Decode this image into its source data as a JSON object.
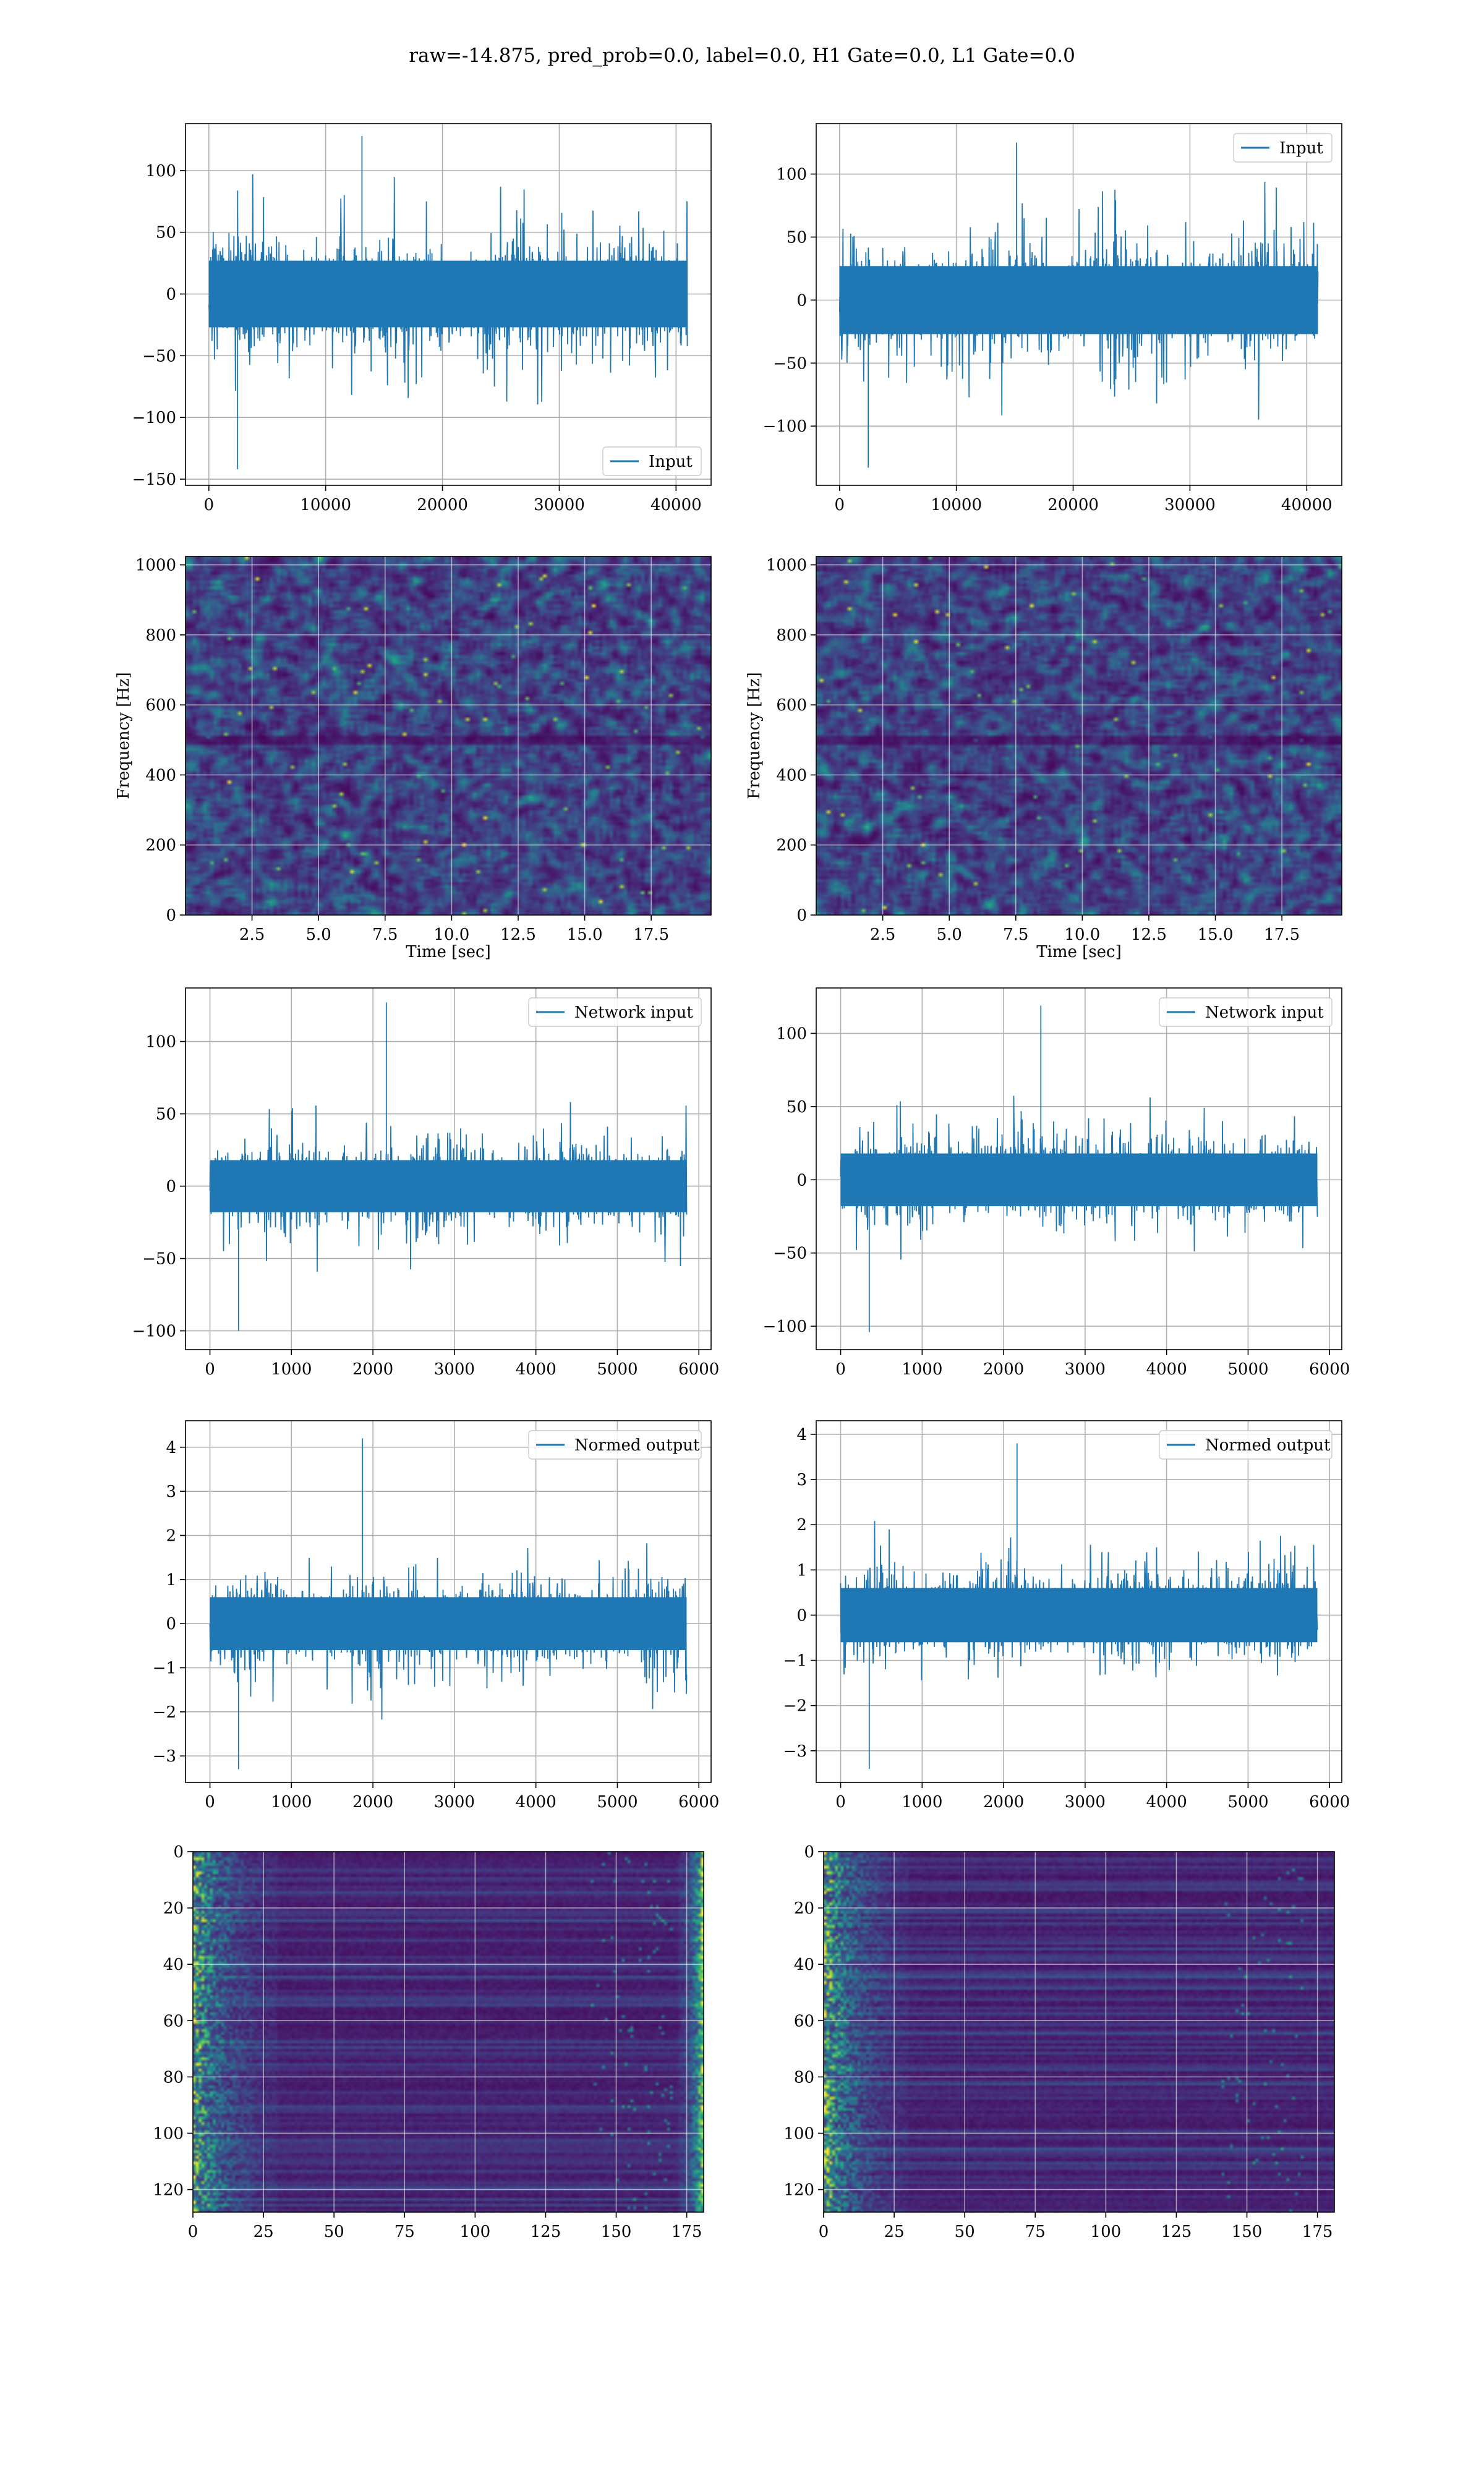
{
  "suptitle": "raw=-14.875, pred_prob=0.0, label=0.0, H1 Gate=0.0, L1 Gate=0.0",
  "colors": {
    "line": "#1f77b4",
    "grid": "#b0b0b0",
    "viridis_low": "#440154",
    "viridis_high": "#fde725"
  },
  "chart_data": [
    {
      "id": "input-h1",
      "type": "line",
      "grid": true,
      "legend": "bottom-right",
      "series": [
        {
          "name": "Input",
          "samples": 40960,
          "x_range": [
            0,
            40960
          ],
          "envelope": 45,
          "peak_max": 128,
          "peak_min": -142
        }
      ],
      "xlim": [
        -2000,
        43000
      ],
      "ylim": [
        -155,
        138
      ],
      "xticks": [
        0,
        10000,
        20000,
        30000,
        40000
      ],
      "xticklabels": [
        "0",
        "10000",
        "20000",
        "30000",
        "40000"
      ],
      "yticks": [
        -150,
        -100,
        -50,
        0,
        50,
        100
      ],
      "yticklabels": [
        "−150",
        "−100",
        "−50",
        "0",
        "50",
        "100"
      ]
    },
    {
      "id": "input-l1",
      "type": "line",
      "grid": true,
      "legend": "top-right",
      "series": [
        {
          "name": "Input",
          "samples": 40960,
          "x_range": [
            0,
            40960
          ],
          "envelope": 45,
          "peak_max": 125,
          "peak_min": -133
        }
      ],
      "xlim": [
        -2000,
        43000
      ],
      "ylim": [
        -147,
        140
      ],
      "xticks": [
        0,
        10000,
        20000,
        30000,
        40000
      ],
      "xticklabels": [
        "0",
        "10000",
        "20000",
        "30000",
        "40000"
      ],
      "yticks": [
        -100,
        -50,
        0,
        50,
        100
      ],
      "yticklabels": [
        "−100",
        "−50",
        "0",
        "50",
        "100"
      ]
    },
    {
      "id": "spectrogram-h1",
      "type": "heatmap",
      "grid": true,
      "xlabel": "Time [sec]",
      "ylabel": "Frequency [Hz]",
      "xlim": [
        0.0,
        19.75
      ],
      "ylim": [
        0,
        1024
      ],
      "xticks": [
        2.5,
        5.0,
        7.5,
        10.0,
        12.5,
        15.0,
        17.5
      ],
      "xticklabels": [
        "2.5",
        "5.0",
        "7.5",
        "10.0",
        "12.5",
        "15.0",
        "17.5"
      ],
      "yticks": [
        0,
        200,
        400,
        600,
        800,
        1000
      ],
      "yticklabels": [
        "0",
        "200",
        "400",
        "600",
        "800",
        "1000"
      ],
      "colormap": "viridis",
      "dark_band_hz": 500
    },
    {
      "id": "spectrogram-l1",
      "type": "heatmap",
      "grid": true,
      "xlabel": "Time [sec]",
      "ylabel": "Frequency [Hz]",
      "xlim": [
        0.0,
        19.75
      ],
      "ylim": [
        0,
        1024
      ],
      "xticks": [
        2.5,
        5.0,
        7.5,
        10.0,
        12.5,
        15.0,
        17.5
      ],
      "xticklabels": [
        "2.5",
        "5.0",
        "7.5",
        "10.0",
        "12.5",
        "15.0",
        "17.5"
      ],
      "yticks": [
        0,
        200,
        400,
        600,
        800,
        1000
      ],
      "yticklabels": [
        "0",
        "200",
        "400",
        "600",
        "800",
        "1000"
      ],
      "colormap": "viridis",
      "dark_band_hz": 500
    },
    {
      "id": "network-input-h1",
      "type": "line",
      "grid": true,
      "legend": "top-right",
      "series": [
        {
          "name": "Network input",
          "samples": 5850,
          "x_range": [
            0,
            5850
          ],
          "envelope": 30,
          "peak_max": 127,
          "peak_min": -100
        }
      ],
      "xlim": [
        -300,
        6150
      ],
      "ylim": [
        -113,
        137
      ],
      "xticks": [
        0,
        1000,
        2000,
        3000,
        4000,
        5000,
        6000
      ],
      "xticklabels": [
        "0",
        "1000",
        "2000",
        "3000",
        "4000",
        "5000",
        "6000"
      ],
      "yticks": [
        -100,
        -50,
        0,
        50,
        100
      ],
      "yticklabels": [
        "−100",
        "−50",
        "0",
        "50",
        "100"
      ]
    },
    {
      "id": "network-input-l1",
      "type": "line",
      "grid": true,
      "legend": "top-right",
      "series": [
        {
          "name": "Network input",
          "samples": 5850,
          "x_range": [
            0,
            5850
          ],
          "envelope": 30,
          "peak_max": 119,
          "peak_min": -104
        }
      ],
      "xlim": [
        -300,
        6150
      ],
      "ylim": [
        -116,
        131
      ],
      "xticks": [
        0,
        1000,
        2000,
        3000,
        4000,
        5000,
        6000
      ],
      "xticklabels": [
        "0",
        "1000",
        "2000",
        "3000",
        "4000",
        "5000",
        "6000"
      ],
      "yticks": [
        -100,
        -50,
        0,
        50,
        100
      ],
      "yticklabels": [
        "−100",
        "−50",
        "0",
        "50",
        "100"
      ]
    },
    {
      "id": "normed-output-h1",
      "type": "line",
      "grid": true,
      "legend": "top-right",
      "series": [
        {
          "name": "Normed output",
          "samples": 5850,
          "x_range": [
            0,
            5850
          ],
          "envelope": 1.0,
          "peak_max": 4.2,
          "peak_min": -3.3
        }
      ],
      "xlim": [
        -300,
        6150
      ],
      "ylim": [
        -3.6,
        4.6
      ],
      "xticks": [
        0,
        1000,
        2000,
        3000,
        4000,
        5000,
        6000
      ],
      "xticklabels": [
        "0",
        "1000",
        "2000",
        "3000",
        "4000",
        "5000",
        "6000"
      ],
      "yticks": [
        -3,
        -2,
        -1,
        0,
        1,
        2,
        3,
        4
      ],
      "yticklabels": [
        "−3",
        "−2",
        "−1",
        "0",
        "1",
        "2",
        "3",
        "4"
      ]
    },
    {
      "id": "normed-output-l1",
      "type": "line",
      "grid": true,
      "legend": "top-right",
      "series": [
        {
          "name": "Normed output",
          "samples": 5850,
          "x_range": [
            0,
            5850
          ],
          "envelope": 1.0,
          "peak_max": 3.8,
          "peak_min": -3.4
        }
      ],
      "xlim": [
        -300,
        6150
      ],
      "ylim": [
        -3.7,
        4.3
      ],
      "xticks": [
        0,
        1000,
        2000,
        3000,
        4000,
        5000,
        6000
      ],
      "xticklabels": [
        "0",
        "1000",
        "2000",
        "3000",
        "4000",
        "5000",
        "6000"
      ],
      "yticks": [
        -3,
        -2,
        -1,
        0,
        1,
        2,
        3,
        4
      ],
      "yticklabels": [
        "−3",
        "−2",
        "−1",
        "0",
        "1",
        "2",
        "3",
        "4"
      ]
    },
    {
      "id": "feature-map-h1",
      "type": "heatmap",
      "grid": true,
      "xlim": [
        0,
        181
      ],
      "ylim": [
        128,
        0
      ],
      "rows": 128,
      "cols": 181,
      "xticks": [
        0,
        25,
        50,
        75,
        100,
        125,
        150,
        175
      ],
      "xticklabels": [
        "0",
        "25",
        "50",
        "75",
        "100",
        "125",
        "150",
        "175"
      ],
      "yticks": [
        0,
        20,
        40,
        60,
        80,
        100,
        120
      ],
      "yticklabels": [
        "0",
        "20",
        "40",
        "60",
        "80",
        "100",
        "120"
      ],
      "colormap": "viridis",
      "bright_edges": "left and right"
    },
    {
      "id": "feature-map-l1",
      "type": "heatmap",
      "grid": true,
      "xlim": [
        0,
        181
      ],
      "ylim": [
        128,
        0
      ],
      "rows": 128,
      "cols": 181,
      "xticks": [
        0,
        25,
        50,
        75,
        100,
        125,
        150,
        175
      ],
      "xticklabels": [
        "0",
        "25",
        "50",
        "75",
        "100",
        "125",
        "150",
        "175"
      ],
      "yticks": [
        0,
        20,
        40,
        60,
        80,
        100,
        120
      ],
      "yticklabels": [
        "0",
        "20",
        "40",
        "60",
        "80",
        "100",
        "120"
      ],
      "colormap": "viridis",
      "bright_edges": "left"
    }
  ]
}
